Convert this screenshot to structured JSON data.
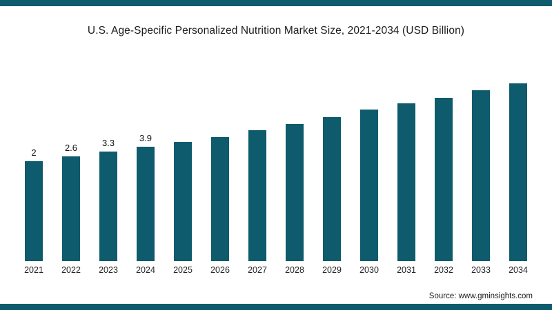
{
  "page": {
    "title": "U.S. Age-Specific Personalized Nutrition Market Size, 2021-2034 (USD Billion)",
    "source": "Source: www.gminsights.com",
    "accent_color": "#0d5b6c"
  },
  "chart_data": {
    "type": "bar",
    "title": "U.S. Age-Specific Personalized Nutrition Market Size, 2021-2034 (USD Billion)",
    "xlabel": "",
    "ylabel": "USD Billion",
    "legend": false,
    "grid": false,
    "bar_color": "#0d5b6c",
    "categories": [
      "2021",
      "2022",
      "2023",
      "2024",
      "2025",
      "2026",
      "2027",
      "2028",
      "2029",
      "2030",
      "2031",
      "2032",
      "2033",
      "2034"
    ],
    "values": [
      2,
      2.6,
      3.3,
      3.9,
      4.5,
      5.2,
      6.1,
      6.9,
      7.8,
      8.8,
      9.6,
      10.4,
      11.4,
      12.3
    ],
    "data_labels": [
      "2",
      "2.6",
      "3.3",
      "3.9",
      "",
      "",
      "",
      "",
      "",
      "",
      "",
      "",
      "",
      ""
    ]
  }
}
